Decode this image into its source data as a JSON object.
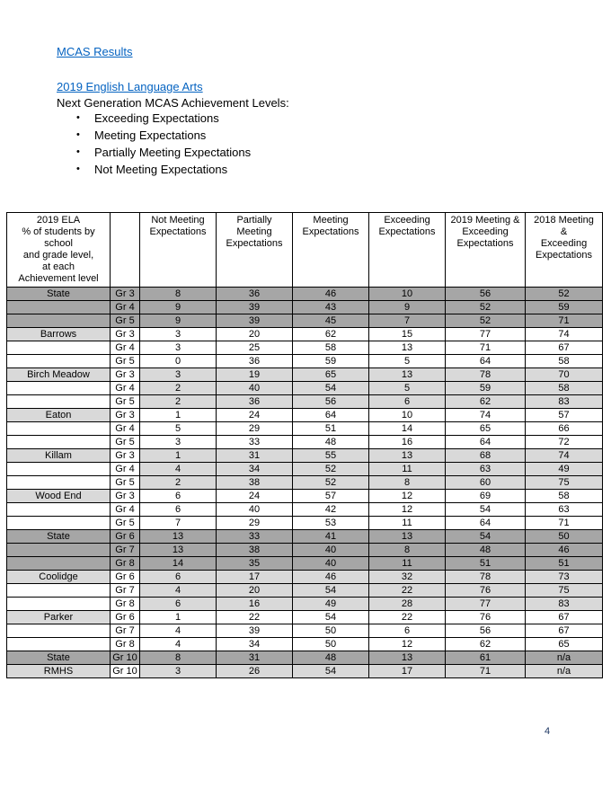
{
  "header": {
    "mcas_link": "MCAS Results",
    "ela_link": "2019 English Language Arts",
    "intro": "Next Generation MCAS Achievement Levels:",
    "bullets": [
      "Exceeding Expectations",
      "Meeting Expectations",
      "Partially Meeting Expectations",
      "Not Meeting Expectations"
    ]
  },
  "colors": {
    "state_row": "#a6a6a6",
    "shaded_cell": "#d9d9d9",
    "link_blue": "#0563c1"
  },
  "table": {
    "header": {
      "school": "2019 ELA\n% of students by\nschool\nand grade level,\nat each\nAchievement level",
      "grade": "",
      "not_meeting": "Not Meeting\nExpectations",
      "partially_meeting": "Partially\nMeeting\nExpectations",
      "meeting": "Meeting\nExpectations",
      "exceeding": "Exceeding\nExpectations",
      "meeting_2019": "2019 Meeting &\nExceeding\nExpectations",
      "meeting_2018": "2018 Meeting\n&\nExceeding\nExpectations"
    },
    "rows": [
      {
        "school": "State",
        "grade": "Gr 3",
        "values": [
          "8",
          "36",
          "46",
          "10",
          "56",
          "52"
        ],
        "band": "state"
      },
      {
        "school": "",
        "grade": "Gr 4",
        "values": [
          "9",
          "39",
          "43",
          "9",
          "52",
          "59"
        ],
        "band": "state"
      },
      {
        "school": "",
        "grade": "Gr 5",
        "values": [
          "9",
          "39",
          "45",
          "7",
          "52",
          "71"
        ],
        "band": "state"
      },
      {
        "school": "Barrows",
        "grade": "Gr 3",
        "values": [
          "3",
          "20",
          "62",
          "15",
          "77",
          "74"
        ],
        "band": "plain"
      },
      {
        "school": "",
        "grade": "Gr 4",
        "values": [
          "3",
          "25",
          "58",
          "13",
          "71",
          "67"
        ],
        "band": "plain"
      },
      {
        "school": "",
        "grade": "Gr 5",
        "values": [
          "0",
          "36",
          "59",
          "5",
          "64",
          "58"
        ],
        "band": "plain"
      },
      {
        "school": "Birch Meadow",
        "grade": "Gr 3",
        "values": [
          "3",
          "19",
          "65",
          "13",
          "78",
          "70"
        ],
        "band": "shaded"
      },
      {
        "school": "",
        "grade": "Gr 4",
        "values": [
          "2",
          "40",
          "54",
          "5",
          "59",
          "58"
        ],
        "band": "shaded"
      },
      {
        "school": "",
        "grade": "Gr 5",
        "values": [
          "2",
          "36",
          "56",
          "6",
          "62",
          "83"
        ],
        "band": "shaded"
      },
      {
        "school": "Eaton",
        "grade": "Gr 3",
        "values": [
          "1",
          "24",
          "64",
          "10",
          "74",
          "57"
        ],
        "band": "plain"
      },
      {
        "school": "",
        "grade": "Gr 4",
        "values": [
          "5",
          "29",
          "51",
          "14",
          "65",
          "66"
        ],
        "band": "plain"
      },
      {
        "school": "",
        "grade": "Gr 5",
        "values": [
          "3",
          "33",
          "48",
          "16",
          "64",
          "72"
        ],
        "band": "plain"
      },
      {
        "school": "Killam",
        "grade": "Gr 3",
        "values": [
          "1",
          "31",
          "55",
          "13",
          "68",
          "74"
        ],
        "band": "shaded"
      },
      {
        "school": "",
        "grade": "Gr 4",
        "values": [
          "4",
          "34",
          "52",
          "11",
          "63",
          "49"
        ],
        "band": "shaded"
      },
      {
        "school": "",
        "grade": "Gr 5",
        "values": [
          "2",
          "38",
          "52",
          "8",
          "60",
          "75"
        ],
        "band": "shaded"
      },
      {
        "school": "Wood End",
        "grade": "Gr 3",
        "values": [
          "6",
          "24",
          "57",
          "12",
          "69",
          "58"
        ],
        "band": "plain"
      },
      {
        "school": "",
        "grade": "Gr 4",
        "values": [
          "6",
          "40",
          "42",
          "12",
          "54",
          "63"
        ],
        "band": "plain"
      },
      {
        "school": "",
        "grade": "Gr 5",
        "values": [
          "7",
          "29",
          "53",
          "11",
          "64",
          "71"
        ],
        "band": "plain"
      },
      {
        "school": "State",
        "grade": "Gr 6",
        "values": [
          "13",
          "33",
          "41",
          "13",
          "54",
          "50"
        ],
        "band": "state"
      },
      {
        "school": "",
        "grade": "Gr 7",
        "values": [
          "13",
          "38",
          "40",
          "8",
          "48",
          "46"
        ],
        "band": "state"
      },
      {
        "school": "",
        "grade": "Gr 8",
        "values": [
          "14",
          "35",
          "40",
          "11",
          "51",
          "51"
        ],
        "band": "state"
      },
      {
        "school": "Coolidge",
        "grade": "Gr 6",
        "values": [
          "6",
          "17",
          "46",
          "32",
          "78",
          "73"
        ],
        "band": "shaded"
      },
      {
        "school": "",
        "grade": "Gr 7",
        "values": [
          "4",
          "20",
          "54",
          "22",
          "76",
          "75"
        ],
        "band": "shaded"
      },
      {
        "school": "",
        "grade": "Gr 8",
        "values": [
          "6",
          "16",
          "49",
          "28",
          "77",
          "83"
        ],
        "band": "shaded"
      },
      {
        "school": "Parker",
        "grade": "Gr 6",
        "values": [
          "1",
          "22",
          "54",
          "22",
          "76",
          "67"
        ],
        "band": "plain"
      },
      {
        "school": "",
        "grade": "Gr 7",
        "values": [
          "4",
          "39",
          "50",
          "6",
          "56",
          "67"
        ],
        "band": "plain"
      },
      {
        "school": "",
        "grade": "Gr 8",
        "values": [
          "4",
          "34",
          "50",
          "12",
          "62",
          "65"
        ],
        "band": "plain"
      },
      {
        "school": "State",
        "grade": "Gr 10",
        "values": [
          "8",
          "31",
          "48",
          "13",
          "61",
          "n/a"
        ],
        "band": "state"
      },
      {
        "school": "RMHS",
        "grade": "Gr 10",
        "values": [
          "3",
          "26",
          "54",
          "17",
          "71",
          "n/a"
        ],
        "band": "shaded"
      }
    ]
  },
  "footer": {
    "page_number": "4"
  }
}
